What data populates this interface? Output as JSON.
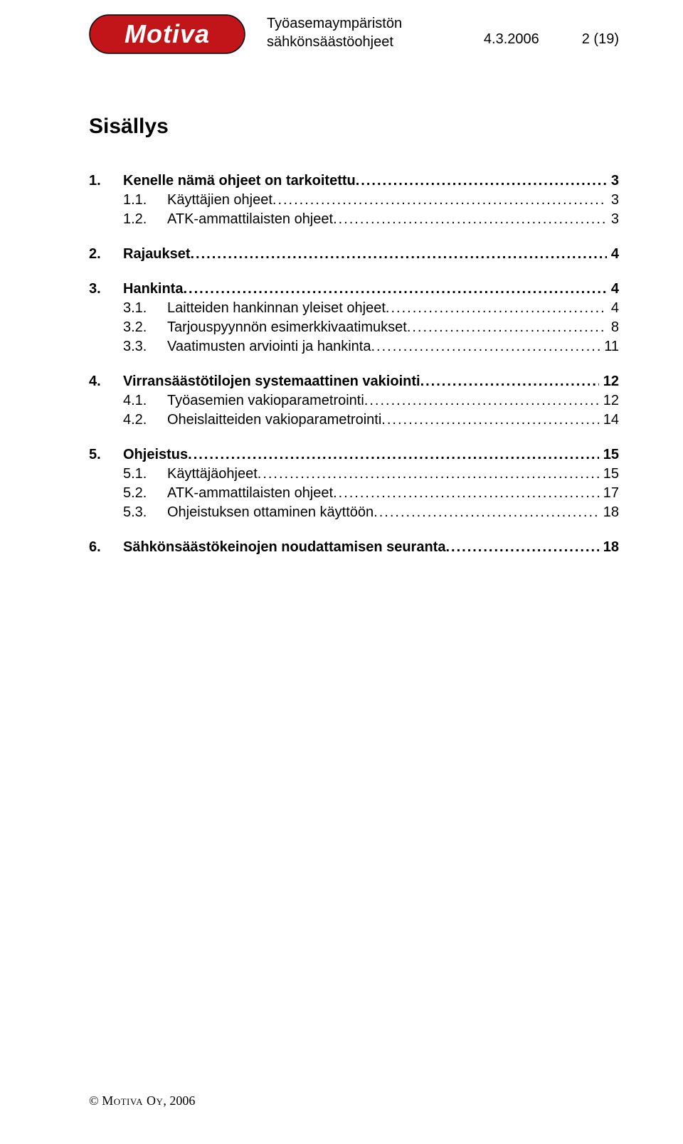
{
  "logo": {
    "text": "Motiva",
    "bg_color": "#c2151a",
    "text_color": "#ffffff",
    "border_color": "#000000"
  },
  "header": {
    "title_line1": "Työasemaympäristön",
    "title_line2": "sähkönsäästöohjeet",
    "date": "4.3.2006",
    "page_info": "2 (19)"
  },
  "toc_title": "Sisällys",
  "toc": [
    {
      "level": 1,
      "num": "1.",
      "label": "Kenelle nämä ohjeet on tarkoitettu",
      "page": "3"
    },
    {
      "level": 2,
      "num": "1.1.",
      "label": "Käyttäjien ohjeet",
      "page": "3"
    },
    {
      "level": 2,
      "num": "1.2.",
      "label": "ATK-ammattilaisten ohjeet",
      "page": "3"
    },
    {
      "level": 1,
      "num": "2.",
      "label": "Rajaukset",
      "page": "4"
    },
    {
      "level": 1,
      "num": "3.",
      "label": "Hankinta",
      "page": "4"
    },
    {
      "level": 2,
      "num": "3.1.",
      "label": "Laitteiden hankinnan yleiset ohjeet",
      "page": "4"
    },
    {
      "level": 2,
      "num": "3.2.",
      "label": "Tarjouspyynnön esimerkkivaatimukset",
      "page": "8"
    },
    {
      "level": 2,
      "num": "3.3.",
      "label": "Vaatimusten arviointi ja hankinta",
      "page": "11"
    },
    {
      "level": 1,
      "num": "4.",
      "label": "Virransäästötilojen systemaattinen vakiointi",
      "page": "12"
    },
    {
      "level": 2,
      "num": "4.1.",
      "label": "Työasemien vakioparametrointi",
      "page": "12"
    },
    {
      "level": 2,
      "num": "4.2.",
      "label": "Oheislaitteiden vakioparametrointi",
      "page": "14"
    },
    {
      "level": 1,
      "num": "5.",
      "label": "Ohjeistus",
      "page": "15"
    },
    {
      "level": 2,
      "num": "5.1.",
      "label": "Käyttäjäohjeet",
      "page": "15"
    },
    {
      "level": 2,
      "num": "5.2.",
      "label": "ATK-ammattilaisten ohjeet",
      "page": "17"
    },
    {
      "level": 2,
      "num": "5.3.",
      "label": "Ohjeistuksen ottaminen käyttöön",
      "page": "18"
    },
    {
      "level": 1,
      "num": "6.",
      "label": "Sähkönsäästökeinojen noudattamisen seuranta",
      "page": "18"
    }
  ],
  "footer": {
    "copyright_prefix": "© ",
    "company_sc": "Motiva Oy",
    "year": ", 2006"
  }
}
